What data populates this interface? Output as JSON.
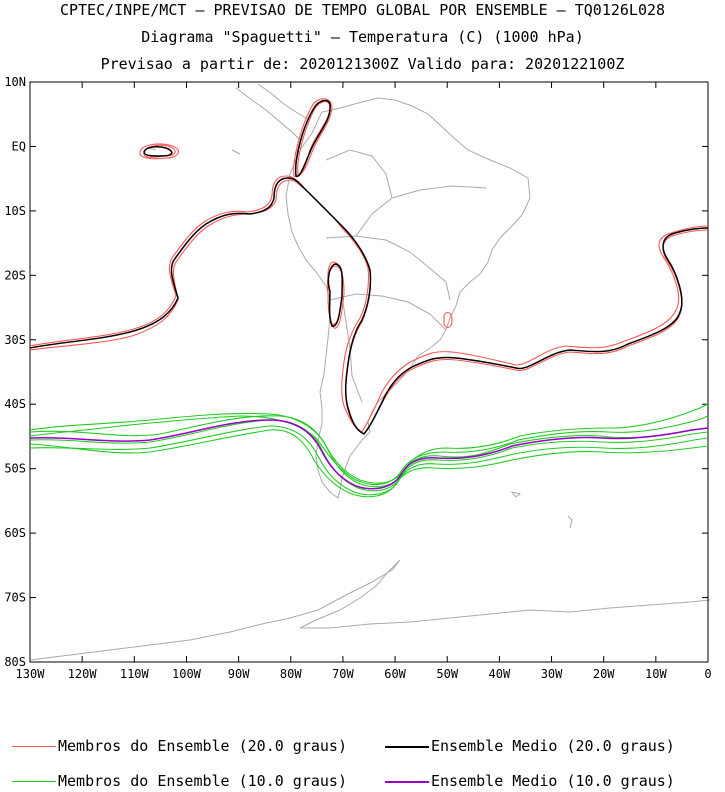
{
  "titles": {
    "line1": "CPTEC/INPE/MCT – PREVISAO DE TEMPO GLOBAL POR ENSEMBLE – TQ0126L028",
    "line2": "Diagrama \"Spaguetti\" – Temperatura (C) (1000 hPa)",
    "line3": "Previsao a partir de: 2020121300Z  Valido para: 2020122100Z"
  },
  "axes": {
    "lat_labels": [
      "10N",
      "EQ",
      "10S",
      "20S",
      "30S",
      "40S",
      "50S",
      "60S",
      "70S",
      "80S"
    ],
    "lon_labels": [
      "130W",
      "120W",
      "110W",
      "100W",
      "90W",
      "80W",
      "70W",
      "60W",
      "50W",
      "40W",
      "30W",
      "20W",
      "10W",
      "0"
    ]
  },
  "legend": [
    {
      "label": "Membros do Ensemble (20.0 graus)",
      "color": "#ff5555"
    },
    {
      "label": "Ensemble Medio (20.0 graus)",
      "color": "#000000"
    },
    {
      "label": "Membros do Ensemble (10.0 graus)",
      "color": "#22cc22"
    },
    {
      "label": "Ensemble Medio (10.0 graus)",
      "color": "#9900cc"
    }
  ],
  "colors": {
    "coast": "#aaaaaa",
    "member20": "#ff5555",
    "mean20": "#000000",
    "member10": "#22cc22",
    "mean10": "#9900cc"
  }
}
